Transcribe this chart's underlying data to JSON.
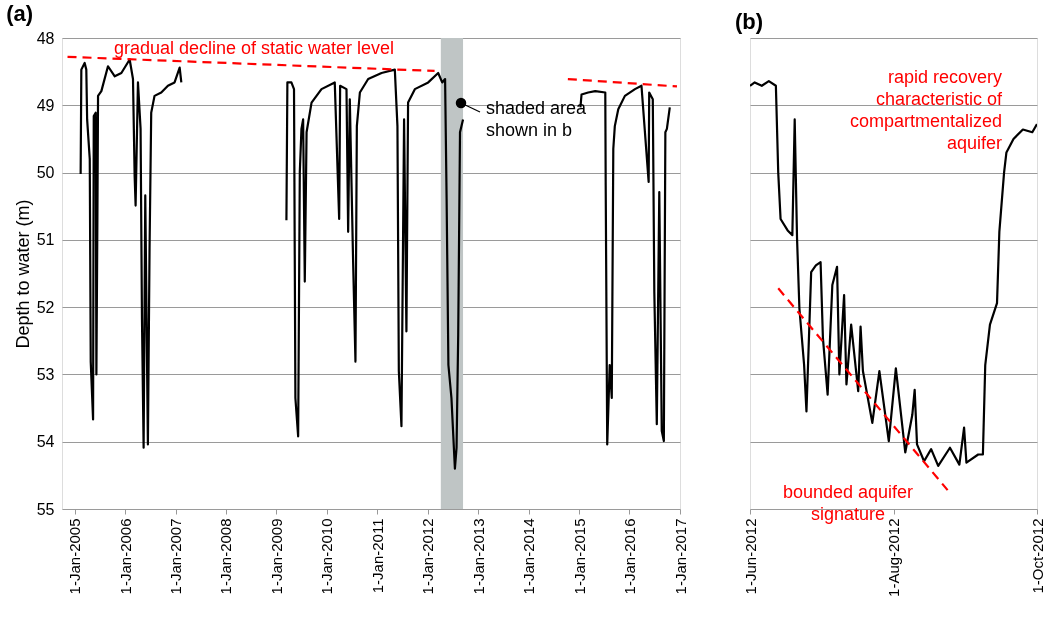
{
  "chart_data": [
    {
      "type": "line",
      "title": "(a)",
      "ylabel": "Depth to water (m)",
      "x": [
        "2005-02-13",
        "2005-02-18",
        "2005-03-14",
        "2005-03-26",
        "2005-04-01",
        "2005-04-20",
        "2005-04-27",
        "2005-05-14",
        "2005-05-19",
        "2005-06-02",
        "2005-06-07",
        "2005-06-14",
        "2005-06-19",
        "2005-07-13",
        "2005-08-30",
        "2005-10-18",
        "2005-12-05",
        "2006-02-03",
        "2006-02-27",
        "2006-03-11",
        "2006-03-18",
        "2006-04-04",
        "2006-04-23",
        "2006-05-03",
        "2006-05-15",
        "2006-05-27",
        "2006-06-15",
        "2006-06-27",
        "2006-07-09",
        "2006-08-02",
        "2006-09-20",
        "2006-11-07",
        "2006-12-25",
        "2007-01-31",
        "2007-02-12",
        "2008-01-01",
        "2009-03-14",
        "2009-03-21",
        "2009-04-19",
        "2009-05-08",
        "2009-05-18",
        "2009-06-07",
        "2009-06-19",
        "2009-07-01",
        "2009-07-13",
        "2009-07-25",
        "2009-08-07",
        "2009-09-12",
        "2009-11-23",
        "2010-02-27",
        "2010-03-31",
        "2010-04-07",
        "2010-05-23",
        "2010-06-04",
        "2010-06-16",
        "2010-07-10",
        "2010-07-27",
        "2010-08-06",
        "2010-08-28",
        "2010-10-27",
        "2011-02-01",
        "2011-05-08",
        "2011-05-27",
        "2011-06-06",
        "2011-06-25",
        "2011-07-14",
        "2011-07-31",
        "2011-08-12",
        "2011-09-30",
        "2012-01-05",
        "2012-03-17",
        "2012-04-15",
        "2012-05-06",
        "2012-05-17",
        "2012-05-30",
        "2012-06-21",
        "2012-07-16",
        "2012-07-28",
        "2012-08-09",
        "2012-08-22",
        "2012-09-13",
        "2013-06-01",
        "2015-01-11",
        "2015-01-19",
        "2015-03-08",
        "2015-04-28",
        "2015-07-10",
        "2015-07-13",
        "2015-07-24",
        "2015-08-11",
        "2015-08-26",
        "2015-09-06",
        "2015-09-17",
        "2015-10-12",
        "2015-11-29",
        "2016-02-10",
        "2016-03-28",
        "2016-05-19",
        "2016-05-23",
        "2016-06-18",
        "2016-06-29",
        "2016-07-17",
        "2016-08-04",
        "2016-08-22",
        "2016-09-06",
        "2016-09-17",
        "2016-09-28",
        "2016-10-19"
      ],
      "series": [
        {
          "color": "#000000",
          "values": [
            50.02,
            48.47,
            48.37,
            48.47,
            49.21,
            49.8,
            52.81,
            53.67,
            49.16,
            49.11,
            53.0,
            50.78,
            48.86,
            48.79,
            48.42,
            48.57,
            48.52,
            48.32,
            48.61,
            50.05,
            50.49,
            48.66,
            49.35,
            52.17,
            54.09,
            50.34,
            54.04,
            51.13,
            49.11,
            48.86,
            48.81,
            48.71,
            48.66,
            48.44,
            48.66,
            null,
            50.71,
            48.66,
            48.66,
            48.76,
            53.35,
            53.92,
            49.99,
            49.35,
            49.21,
            51.62,
            49.4,
            48.96,
            48.76,
            48.66,
            50.69,
            48.71,
            48.76,
            50.88,
            48.91,
            51.33,
            52.81,
            49.31,
            48.81,
            48.61,
            48.52,
            48.47,
            49.31,
            52.95,
            53.77,
            49.21,
            52.36,
            48.96,
            48.76,
            48.66,
            48.52,
            48.66,
            48.61,
            50.39,
            52.86,
            53.35,
            54.4,
            54.09,
            52.41,
            49.4,
            49.21,
            null,
            49.03,
            48.84,
            48.81,
            48.79,
            48.81,
            50.19,
            54.04,
            52.86,
            53.35,
            49.65,
            49.31,
            49.06,
            48.86,
            48.76,
            48.71,
            50.14,
            48.81,
            48.91,
            51.77,
            53.74,
            50.29,
            53.84,
            53.99,
            49.4,
            49.35,
            49.03
          ]
        },
        {
          "type": "line",
          "color": "#ff0000",
          "line_style": "dashed",
          "x": [
            "2004-11-10",
            "2012-02-20",
            "2013-06-01",
            "2014-10-12",
            "2016-12-10"
          ],
          "values": [
            48.28,
            48.49,
            null,
            48.61,
            48.72
          ]
        }
      ],
      "xlim": [
        "2004-10-01",
        "2017-01-01"
      ],
      "xticks": [
        {
          "value": "2005-01-01",
          "label": "1-Jan-2005"
        },
        {
          "value": "2006-01-01",
          "label": "1-Jan-2006"
        },
        {
          "value": "2007-01-01",
          "label": "1-Jan-2007"
        },
        {
          "value": "2008-01-01",
          "label": "1-Jan-2008"
        },
        {
          "value": "2009-01-01",
          "label": "1-Jan-2009"
        },
        {
          "value": "2010-01-01",
          "label": "1-Jan-2010"
        },
        {
          "value": "2011-01-01",
          "label": "1-Jan-2011"
        },
        {
          "value": "2012-01-01",
          "label": "1-Jan-2012"
        },
        {
          "value": "2013-01-01",
          "label": "1-Jan-2013"
        },
        {
          "value": "2014-01-01",
          "label": "1-Jan-2014"
        },
        {
          "value": "2015-01-01",
          "label": "1-Jan-2015"
        },
        {
          "value": "2016-01-01",
          "label": "1-Jan-2016"
        },
        {
          "value": "2017-01-01",
          "label": "1-Jan-2017"
        }
      ],
      "ylim": [
        55,
        48
      ],
      "yticks": [
        48,
        49,
        50,
        51,
        52,
        53,
        54,
        55
      ],
      "grid": "y",
      "bands": [
        {
          "axis": "x",
          "from": "2012-04-05",
          "to": "2012-09-13",
          "color": "#bfc5c5"
        }
      ],
      "annotations": [
        "gradual decline of static water level",
        "shaded area\nshown in b"
      ]
    },
    {
      "type": "line",
      "title": "(b)",
      "x": [
        "2012-06-01",
        "2012-06-03",
        "2012-06-06",
        "2012-06-09",
        "2012-06-12",
        "2012-06-13",
        "2012-06-14",
        "2012-06-17",
        "2012-06-19",
        "2012-06-20",
        "2012-06-21",
        "2012-06-22",
        "2012-06-24",
        "2012-06-25",
        "2012-06-27",
        "2012-06-29",
        "2012-07-01",
        "2012-07-02",
        "2012-07-04",
        "2012-07-06",
        "2012-07-08",
        "2012-07-09",
        "2012-07-11",
        "2012-07-12",
        "2012-07-14",
        "2012-07-17",
        "2012-07-18",
        "2012-07-19",
        "2012-07-23",
        "2012-07-26",
        "2012-07-30",
        "2012-08-02",
        "2012-08-06",
        "2012-08-09",
        "2012-08-10",
        "2012-08-11",
        "2012-08-14",
        "2012-08-17",
        "2012-08-20",
        "2012-08-25",
        "2012-08-29",
        "2012-08-31",
        "2012-09-01",
        "2012-09-06",
        "2012-09-08",
        "2012-09-09",
        "2012-09-11",
        "2012-09-14",
        "2012-09-15",
        "2012-09-17",
        "2012-09-18",
        "2012-09-21",
        "2012-09-25",
        "2012-09-29",
        "2012-10-01"
      ],
      "series": [
        {
          "color": "#000000",
          "values": [
            48.71,
            48.66,
            48.71,
            48.64,
            48.71,
            50.0,
            50.69,
            50.86,
            50.93,
            49.21,
            50.98,
            52.02,
            52.86,
            53.55,
            51.48,
            51.38,
            51.33,
            52.46,
            53.3,
            51.67,
            51.4,
            53.0,
            51.82,
            53.15,
            52.26,
            53.25,
            52.29,
            52.95,
            53.72,
            52.95,
            53.99,
            52.91,
            54.16,
            53.6,
            53.23,
            54.04,
            54.29,
            54.11,
            54.36,
            54.09,
            54.34,
            53.79,
            54.31,
            54.19,
            54.19,
            52.86,
            52.26,
            51.94,
            50.88,
            50.0,
            49.7,
            49.5,
            49.36,
            49.4,
            49.28
          ]
        },
        {
          "type": "line",
          "color": "#ff0000",
          "line_style": "dashed",
          "x": [
            "2012-06-13",
            "2012-08-24"
          ],
          "values": [
            51.72,
            54.72
          ]
        }
      ],
      "xlim": [
        "2012-06-01",
        "2012-10-01"
      ],
      "xticks": [
        {
          "value": "2012-06-01",
          "label": "1-Jun-2012"
        },
        {
          "value": "2012-08-01",
          "label": "1-Aug-2012"
        },
        {
          "value": "2012-10-01",
          "label": "1-Oct-2012"
        }
      ],
      "ylim": [
        55,
        48
      ],
      "yticks": [
        48,
        49,
        50,
        51,
        52,
        53,
        54,
        55
      ],
      "grid": "y",
      "tick_labels": "x",
      "annotations": [
        "rapid recovery\ncharacteristic of\ncompartmentalized\naquifer",
        "bounded aquifer\nsignature"
      ]
    }
  ]
}
